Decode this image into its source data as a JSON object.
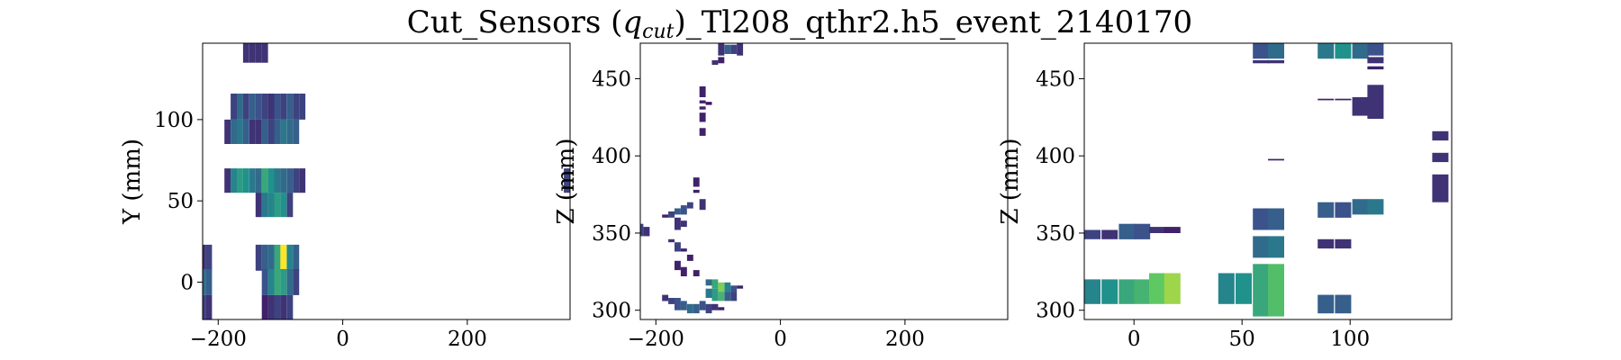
{
  "chart_data": {
    "title_prefix": "Cut_Sensors (",
    "title_q": "q",
    "title_sub": "cut",
    "title_suffix": ")_Tl208_qthr2.h5_event_2140170",
    "colormap": "viridis",
    "panels": [
      {
        "type": "heatmap",
        "xlabel": "",
        "ylabel": "Y (mm)",
        "xlim": [
          -225,
          365
        ],
        "ylim": [
          -23,
          147
        ],
        "xticks": [
          -200,
          0,
          200
        ],
        "yticks": [
          0,
          50,
          100
        ],
        "cells": [
          [
            -160,
            147,
            135,
            0.15
          ],
          [
            -150,
            147,
            135,
            0.15
          ],
          [
            -140,
            147,
            135,
            0.15
          ],
          [
            -130,
            147,
            135,
            0.15
          ],
          [
            -180,
            116,
            100,
            0.2
          ],
          [
            -170,
            116,
            100,
            0.35
          ],
          [
            -160,
            116,
            100,
            0.2
          ],
          [
            -150,
            116,
            100,
            0.3
          ],
          [
            -140,
            116,
            100,
            0.25
          ],
          [
            -130,
            116,
            100,
            0.2
          ],
          [
            -120,
            116,
            100,
            0.15
          ],
          [
            -110,
            116,
            100,
            0.25
          ],
          [
            -100,
            116,
            100,
            0.2
          ],
          [
            -90,
            116,
            100,
            0.3
          ],
          [
            -80,
            116,
            100,
            0.2
          ],
          [
            -70,
            116,
            100,
            0.2
          ],
          [
            -190,
            100,
            85,
            0.15
          ],
          [
            -180,
            100,
            85,
            0.35
          ],
          [
            -170,
            100,
            85,
            0.4
          ],
          [
            -160,
            100,
            85,
            0.3
          ],
          [
            -150,
            100,
            85,
            0.15
          ],
          [
            -140,
            100,
            85,
            0.15
          ],
          [
            -130,
            100,
            85,
            0.3
          ],
          [
            -120,
            100,
            85,
            0.2
          ],
          [
            -110,
            100,
            85,
            0.3
          ],
          [
            -100,
            100,
            85,
            0.4
          ],
          [
            -90,
            100,
            85,
            0.35
          ],
          [
            -80,
            100,
            85,
            0.3
          ],
          [
            -180,
            70,
            55,
            0.45
          ],
          [
            -170,
            70,
            55,
            0.55
          ],
          [
            -160,
            70,
            55,
            0.5
          ],
          [
            -150,
            70,
            55,
            0.4
          ],
          [
            -140,
            70,
            55,
            0.35
          ],
          [
            -130,
            70,
            55,
            0.6
          ],
          [
            -120,
            70,
            55,
            0.5
          ],
          [
            -110,
            70,
            55,
            0.4
          ],
          [
            -100,
            70,
            55,
            0.35
          ],
          [
            -90,
            70,
            55,
            0.3
          ],
          [
            -80,
            70,
            55,
            0.2
          ],
          [
            -190,
            70,
            55,
            0.15
          ],
          [
            -70,
            70,
            55,
            0.15
          ],
          [
            -140,
            55,
            40,
            0.15
          ],
          [
            -130,
            55,
            40,
            0.4
          ],
          [
            -120,
            55,
            40,
            0.45
          ],
          [
            -110,
            55,
            40,
            0.55
          ],
          [
            -100,
            55,
            40,
            0.5
          ],
          [
            -90,
            55,
            40,
            0.2
          ],
          [
            355,
            70,
            55,
            0.2
          ],
          [
            -230,
            23,
            7,
            0.15
          ],
          [
            -220,
            23,
            7,
            0.2
          ],
          [
            -140,
            23,
            7,
            0.2
          ],
          [
            -130,
            23,
            7,
            0.3
          ],
          [
            -120,
            23,
            7,
            0.35
          ],
          [
            -110,
            23,
            7,
            0.6
          ],
          [
            -100,
            23,
            7,
            1.0
          ],
          [
            -90,
            23,
            7,
            0.45
          ],
          [
            -80,
            23,
            7,
            0.3
          ],
          [
            -230,
            8,
            -8,
            0.35
          ],
          [
            -220,
            8,
            -8,
            0.3
          ],
          [
            -130,
            8,
            -8,
            0.25
          ],
          [
            -120,
            8,
            -8,
            0.45
          ],
          [
            -110,
            8,
            -8,
            0.6
          ],
          [
            -100,
            8,
            -8,
            0.55
          ],
          [
            -90,
            8,
            -8,
            0.35
          ],
          [
            -80,
            8,
            -8,
            0.2
          ],
          [
            -230,
            -8,
            -23,
            0.2
          ],
          [
            -220,
            -8,
            -23,
            0.15
          ],
          [
            -130,
            -8,
            -23,
            0.1
          ],
          [
            -120,
            -8,
            -23,
            0.15
          ],
          [
            -110,
            -8,
            -23,
            0.2
          ],
          [
            -100,
            -8,
            -23,
            0.15
          ],
          [
            -90,
            -8,
            -23,
            0.2
          ]
        ]
      },
      {
        "type": "heatmap",
        "xlabel": "",
        "ylabel": "Z (mm)",
        "xlim": [
          -225,
          365
        ],
        "ylim": [
          294,
          473
        ],
        "xticks": [
          -200,
          0,
          200
        ],
        "yticks": [
          300,
          350,
          400,
          450
        ],
        "cells": [
          [
            -100,
            473,
            465,
            0.15
          ],
          [
            -90,
            472,
            466,
            0.3
          ],
          [
            -80,
            472,
            466,
            0.2
          ],
          [
            -70,
            473,
            465,
            0.15
          ],
          [
            -100,
            464,
            460,
            0.1
          ],
          [
            -110,
            462,
            459,
            0.15
          ],
          [
            -130,
            445,
            438,
            0.1
          ],
          [
            -130,
            436,
            434,
            0.1
          ],
          [
            -130,
            432,
            430,
            0.1
          ],
          [
            -130,
            428,
            422,
            0.1
          ],
          [
            -130,
            418,
            413,
            0.1
          ],
          [
            -120,
            435,
            433,
            0.05
          ],
          [
            -140,
            386,
            380,
            0.1
          ],
          [
            -140,
            378,
            376,
            0.1
          ],
          [
            -130,
            372,
            365,
            0.15
          ],
          [
            -150,
            370,
            366,
            0.2
          ],
          [
            -160,
            368,
            362,
            0.25
          ],
          [
            -170,
            366,
            362,
            0.3
          ],
          [
            -180,
            364,
            360,
            0.2
          ],
          [
            -190,
            362,
            360,
            0.1
          ],
          [
            -170,
            360,
            352,
            0.15
          ],
          [
            -160,
            358,
            354,
            0.15
          ],
          [
            -230,
            356,
            348,
            0.2
          ],
          [
            -220,
            354,
            348,
            0.15
          ],
          [
            -180,
            346,
            344,
            0.15
          ],
          [
            -170,
            344,
            338,
            0.2
          ],
          [
            -160,
            340,
            338,
            0.1
          ],
          [
            -150,
            336,
            332,
            0.1
          ],
          [
            -170,
            332,
            326,
            0.1
          ],
          [
            -160,
            328,
            322,
            0.1
          ],
          [
            -140,
            326,
            322,
            0.1
          ],
          [
            -120,
            320,
            316,
            0.35
          ],
          [
            -110,
            320,
            314,
            0.6
          ],
          [
            -100,
            318,
            312,
            0.8
          ],
          [
            -90,
            318,
            312,
            0.45
          ],
          [
            -80,
            316,
            312,
            0.25
          ],
          [
            -70,
            316,
            314,
            0.1
          ],
          [
            -120,
            314,
            308,
            0.4
          ],
          [
            -110,
            314,
            306,
            0.55
          ],
          [
            -100,
            312,
            306,
            0.65
          ],
          [
            -90,
            312,
            306,
            0.3
          ],
          [
            -80,
            312,
            306,
            0.2
          ],
          [
            -190,
            310,
            306,
            0.15
          ],
          [
            -180,
            308,
            304,
            0.2
          ],
          [
            -170,
            308,
            300,
            0.25
          ],
          [
            -160,
            306,
            300,
            0.3
          ],
          [
            -150,
            304,
            298,
            0.35
          ],
          [
            -140,
            304,
            298,
            0.3
          ],
          [
            -130,
            306,
            300,
            0.25
          ],
          [
            -120,
            304,
            298,
            0.2
          ],
          [
            -110,
            304,
            300,
            0.15
          ],
          [
            -100,
            302,
            300,
            0.1
          ]
        ]
      },
      {
        "type": "heatmap",
        "xlabel": "",
        "ylabel": "Z (mm)",
        "xlim": [
          -23,
          147
        ],
        "ylim": [
          294,
          473
        ],
        "xticks": [
          0,
          50,
          100
        ],
        "yticks": [
          300,
          350,
          400,
          450
        ],
        "cells": [
          [
            55,
            473,
            463,
            0.25
          ],
          [
            62,
            473,
            463,
            0.35
          ],
          [
            55,
            462,
            460,
            0.15
          ],
          [
            62,
            462,
            460,
            0.15
          ],
          [
            85,
            473,
            463,
            0.4
          ],
          [
            93,
            473,
            463,
            0.5
          ],
          [
            101,
            473,
            463,
            0.35
          ],
          [
            108,
            473,
            465,
            0.25
          ],
          [
            108,
            464,
            460,
            0.15
          ],
          [
            108,
            458,
            456,
            0.1
          ],
          [
            85,
            437,
            436,
            0.1
          ],
          [
            93,
            437,
            436,
            0.1
          ],
          [
            101,
            438,
            426,
            0.15
          ],
          [
            108,
            446,
            424,
            0.15
          ],
          [
            62,
            398,
            397,
            0.1
          ],
          [
            138,
            416,
            410,
            0.15
          ],
          [
            138,
            402,
            396,
            0.15
          ],
          [
            138,
            388,
            370,
            0.15
          ],
          [
            85,
            370,
            360,
            0.3
          ],
          [
            93,
            370,
            360,
            0.25
          ],
          [
            101,
            372,
            362,
            0.35
          ],
          [
            108,
            372,
            362,
            0.4
          ],
          [
            85,
            346,
            340,
            0.15
          ],
          [
            93,
            346,
            340,
            0.15
          ],
          [
            55,
            366,
            352,
            0.25
          ],
          [
            62,
            366,
            352,
            0.3
          ],
          [
            55,
            348,
            334,
            0.35
          ],
          [
            62,
            348,
            334,
            0.4
          ],
          [
            -23,
            352,
            346,
            0.2
          ],
          [
            -15,
            352,
            346,
            0.15
          ],
          [
            -7,
            356,
            346,
            0.3
          ],
          [
            0,
            356,
            346,
            0.25
          ],
          [
            7,
            354,
            350,
            0.15
          ],
          [
            14,
            354,
            350,
            0.1
          ],
          [
            -23,
            320,
            304,
            0.45
          ],
          [
            -15,
            320,
            304,
            0.5
          ],
          [
            -7,
            320,
            304,
            0.6
          ],
          [
            0,
            320,
            304,
            0.65
          ],
          [
            7,
            324,
            304,
            0.75
          ],
          [
            14,
            324,
            304,
            0.85
          ],
          [
            39,
            324,
            304,
            0.45
          ],
          [
            47,
            324,
            304,
            0.5
          ],
          [
            55,
            330,
            296,
            0.6
          ],
          [
            62,
            330,
            296,
            0.7
          ],
          [
            85,
            310,
            298,
            0.3
          ],
          [
            93,
            310,
            298,
            0.3
          ]
        ]
      }
    ]
  }
}
